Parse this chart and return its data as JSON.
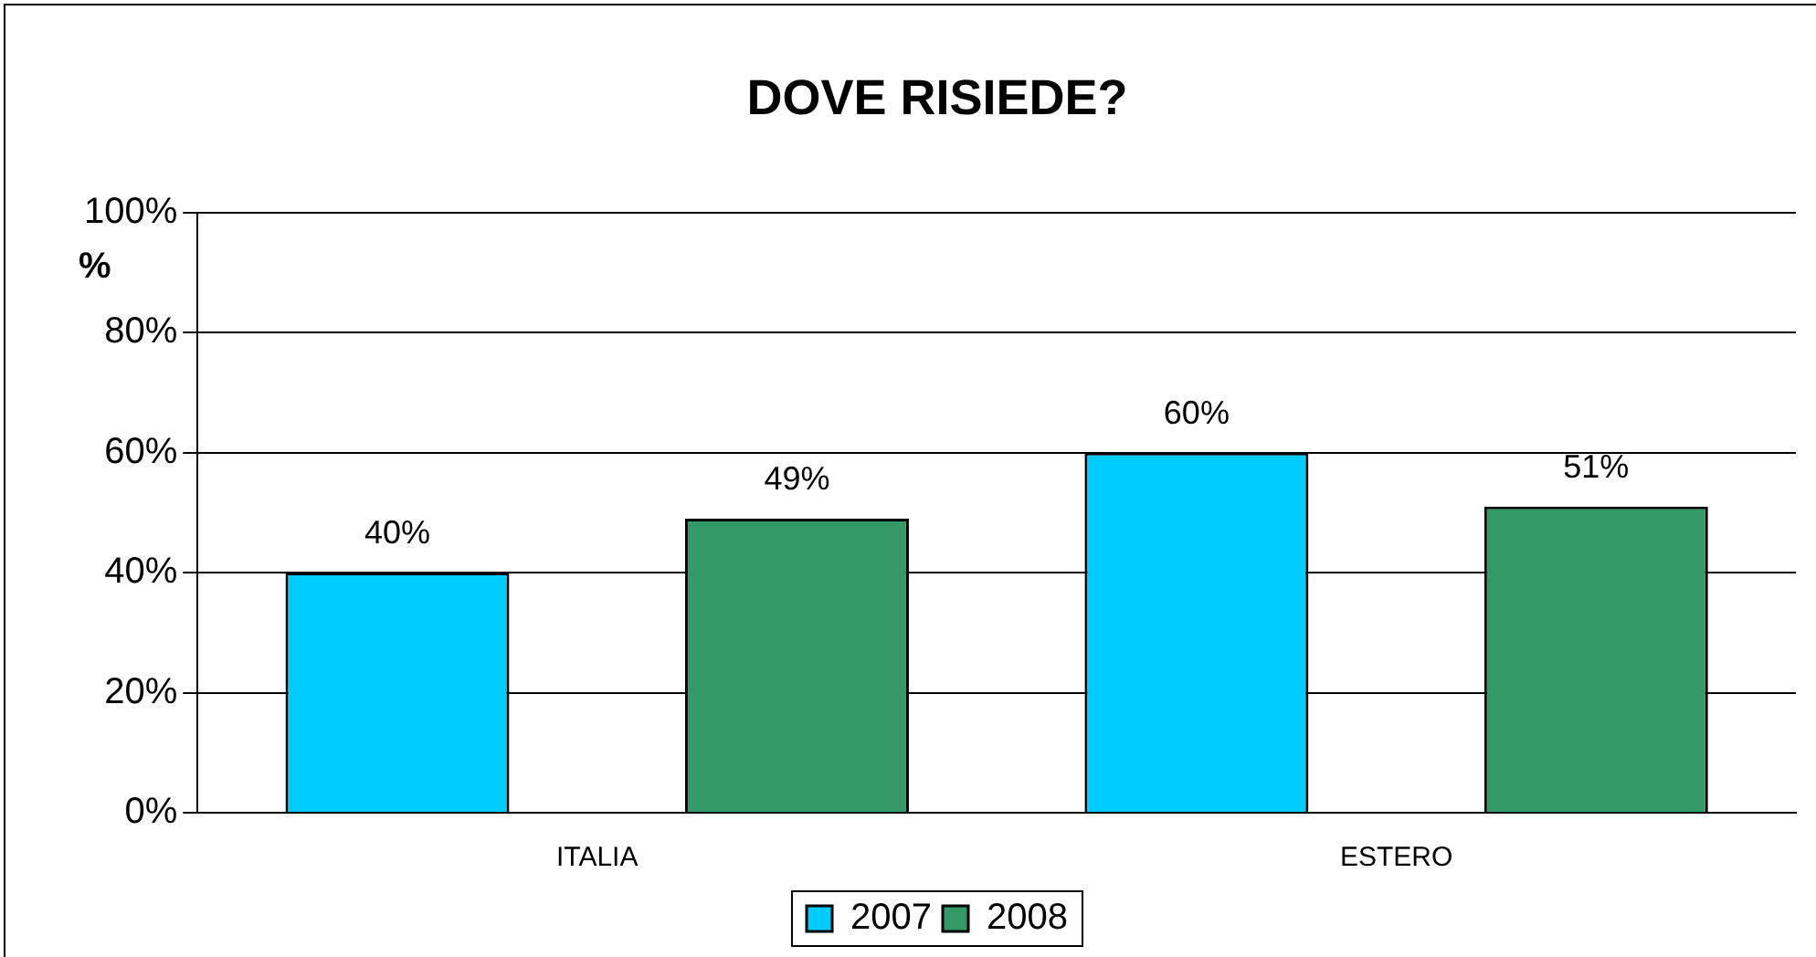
{
  "chart_data": {
    "type": "bar",
    "title": "DOVE RISIEDE?",
    "ylabel": "%",
    "categories": [
      "ITALIA",
      "ESTERO"
    ],
    "series": [
      {
        "name": "2007",
        "color": "#00ccff",
        "values": [
          40,
          60
        ],
        "value_labels": [
          "40%",
          "60%"
        ]
      },
      {
        "name": "2008",
        "color": "#339966",
        "values": [
          49,
          51
        ],
        "value_labels": [
          "49%",
          "51%"
        ]
      }
    ],
    "ylim": [
      0,
      100
    ],
    "yticks": [
      {
        "value": 0,
        "label": "0%"
      },
      {
        "value": 20,
        "label": "20%"
      },
      {
        "value": 40,
        "label": "40%"
      },
      {
        "value": 60,
        "label": "60%"
      },
      {
        "value": 80,
        "label": "80%"
      },
      {
        "value": 100,
        "label": "100%"
      }
    ],
    "grid": "y",
    "legend": "bottom"
  }
}
